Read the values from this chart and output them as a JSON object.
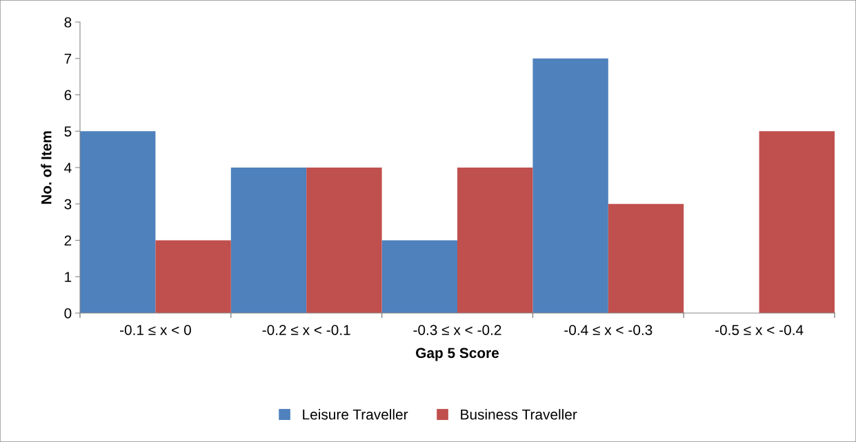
{
  "chart_data": {
    "type": "bar",
    "xlabel": "Gap 5 Score",
    "ylabel": "No. of Item",
    "categories": [
      "-0.1 ≤ x < 0",
      "-0.2 ≤ x < -0.1",
      "-0.3 ≤ x < -0.2",
      "-0.4 ≤ x < -0.3",
      "-0.5 ≤ x < -0.4"
    ],
    "series": [
      {
        "name": "Leisure Traveller",
        "color": "#4f81bd",
        "values": [
          5,
          4,
          2,
          7,
          0
        ]
      },
      {
        "name": "Business Traveller",
        "color": "#c0504d",
        "values": [
          2,
          4,
          4,
          3,
          5
        ]
      }
    ],
    "ylim": [
      0,
      8
    ],
    "yticks": [
      0,
      1,
      2,
      3,
      4,
      5,
      6,
      7,
      8
    ],
    "grid": false,
    "legend": "bottom"
  }
}
